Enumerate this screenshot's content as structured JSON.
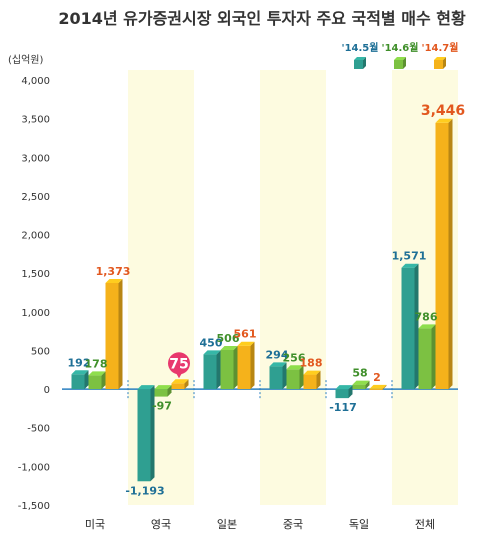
{
  "chart_data": {
    "type": "bar",
    "title": "2014년 유가증권시장 외국인 투자자 주요 국적별 매수 현황",
    "unit_label": "(십억원)",
    "categories": [
      "미국",
      "영국",
      "일본",
      "중국",
      "독일",
      "전체"
    ],
    "series": [
      {
        "name": "'14.5월",
        "values": [
          192,
          -1193,
          450,
          294,
          -117,
          1571
        ]
      },
      {
        "name": "'14.6월",
        "values": [
          178,
          -97,
          506,
          256,
          58,
          786
        ]
      },
      {
        "name": "'14.7월",
        "values": [
          1373,
          75,
          561,
          188,
          2,
          3446
        ]
      }
    ],
    "data_labels": [
      [
        "192",
        "-1,193",
        "450",
        "294",
        "-117",
        "1,571"
      ],
      [
        "178",
        "-97",
        "506",
        "256",
        "58",
        "786"
      ],
      [
        "1,373",
        "75",
        "561",
        "188",
        "2",
        "3,446"
      ]
    ],
    "y_ticks": [
      "4,000",
      "3,500",
      "3,000",
      "2,500",
      "2,000",
      "1,500",
      "1,000",
      "500",
      "0",
      "-500",
      "-1,000",
      "-1,500"
    ],
    "y_tick_values": [
      4000,
      3500,
      3000,
      2500,
      2000,
      1500,
      1000,
      500,
      0,
      -500,
      -1000,
      -1500
    ],
    "ylim": [
      -1500,
      4000
    ],
    "legend_position": "top-right",
    "colors": {
      "series": [
        "#2f9f91",
        "#7cc142",
        "#f5b21b"
      ],
      "label_colors": [
        "#1e6f96",
        "#3f8f2a",
        "#e2581f"
      ],
      "highlight": "#e8386e",
      "band": "#fdfbe0",
      "baseline": "#2a7fc0"
    },
    "highlight": {
      "category": "영국",
      "series": 2
    }
  }
}
